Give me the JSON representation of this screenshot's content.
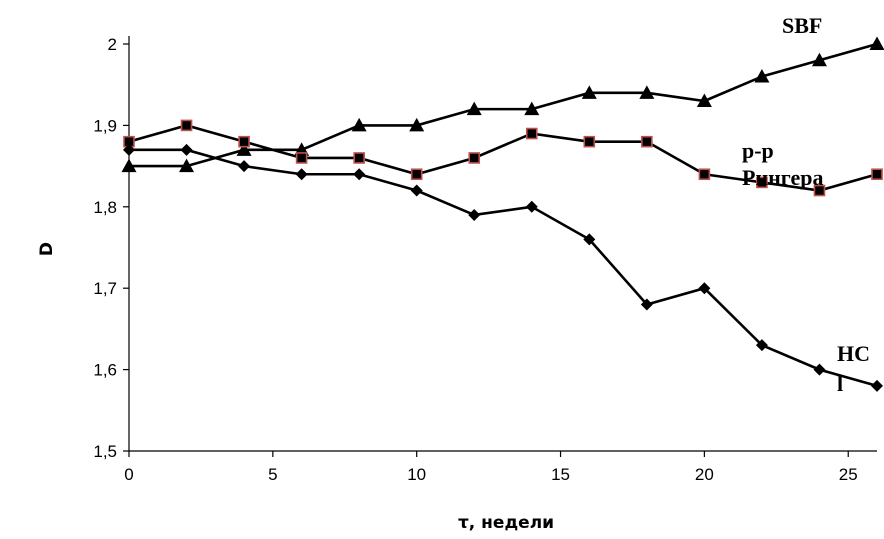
{
  "chart_data": {
    "type": "line",
    "xlabel": "τ, недели",
    "ylabel": "D",
    "xlim": [
      0,
      26
    ],
    "ylim": [
      1.5,
      2.0
    ],
    "x_ticks": [
      "0",
      "5",
      "10",
      "15",
      "20",
      "25"
    ],
    "x_tick_values": [
      0,
      5,
      10,
      15,
      20,
      25
    ],
    "y_ticks": [
      "1,5",
      "1,6",
      "1,7",
      "1,8",
      "1,9",
      "2"
    ],
    "y_tick_values": [
      1.5,
      1.6,
      1.7,
      1.8,
      1.9,
      2.0
    ],
    "grid": false,
    "legend": "none",
    "x": [
      0,
      2,
      4,
      6,
      8,
      10,
      12,
      14,
      16,
      18,
      20,
      22,
      24,
      26
    ],
    "series": [
      {
        "name": "SBF",
        "label_lines": [
          "SBF"
        ],
        "marker": "triangle",
        "color": "#000000",
        "values": [
          1.85,
          1.85,
          1.87,
          1.87,
          1.9,
          1.9,
          1.92,
          1.92,
          1.94,
          1.94,
          1.93,
          1.96,
          1.98,
          2.0
        ]
      },
      {
        "name": "р-р Рингера",
        "label_lines": [
          "р-р",
          "Рингера"
        ],
        "marker": "square",
        "color": "#000000",
        "marker_edge": "#c0504d",
        "values": [
          1.88,
          1.9,
          1.88,
          1.86,
          1.86,
          1.84,
          1.86,
          1.89,
          1.88,
          1.88,
          1.84,
          1.83,
          1.82,
          1.84
        ]
      },
      {
        "name": "HCl",
        "label_lines": [
          "HC",
          "l"
        ],
        "marker": "diamond",
        "color": "#000000",
        "values": [
          1.87,
          1.87,
          1.85,
          1.84,
          1.84,
          1.82,
          1.79,
          1.8,
          1.76,
          1.68,
          1.7,
          1.63,
          1.6,
          1.58
        ]
      }
    ]
  }
}
